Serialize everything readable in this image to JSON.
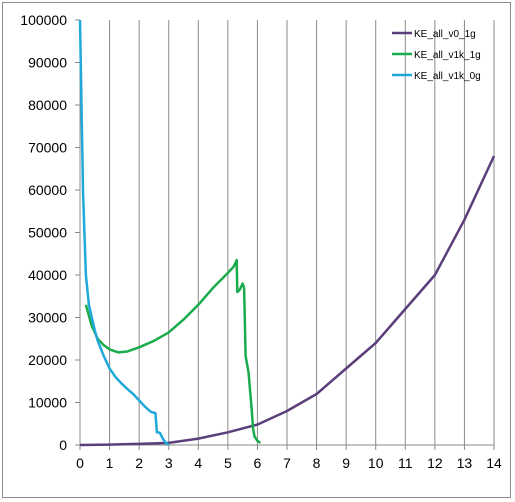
{
  "chart_data": {
    "type": "line",
    "title": "",
    "xlabel": "",
    "ylabel": "",
    "xlim": [
      0,
      14
    ],
    "ylim": [
      0,
      100000
    ],
    "x_ticks": [
      "0",
      "1",
      "2",
      "3",
      "4",
      "5",
      "6",
      "7",
      "8",
      "9",
      "10",
      "11",
      "12",
      "13",
      "14"
    ],
    "y_ticks": [
      "0",
      "10000",
      "20000",
      "30000",
      "40000",
      "50000",
      "60000",
      "70000",
      "80000",
      "90000",
      "100000"
    ],
    "grid": {
      "vertical": true,
      "horizontal": false
    },
    "legend_position": "top-right",
    "series": [
      {
        "name": "KE_all_v0_1g",
        "color": "#5b3f7a",
        "points": [
          [
            0,
            0
          ],
          [
            1,
            100
          ],
          [
            2,
            250
          ],
          [
            3,
            500
          ],
          [
            4,
            1500
          ],
          [
            5,
            3000
          ],
          [
            6,
            4800
          ],
          [
            7,
            8000
          ],
          [
            8,
            12000
          ],
          [
            9,
            18000
          ],
          [
            10,
            24000
          ],
          [
            11,
            32000
          ],
          [
            12,
            40000
          ],
          [
            13,
            53000
          ],
          [
            14,
            68000
          ]
        ]
      },
      {
        "name": "KE_all_v1k_1g",
        "color": "#1aac4c",
        "points": [
          [
            0.2,
            33000
          ],
          [
            0.4,
            28000
          ],
          [
            0.6,
            25000
          ],
          [
            0.8,
            23500
          ],
          [
            1,
            22500
          ],
          [
            1.3,
            21800
          ],
          [
            1.6,
            22000
          ],
          [
            2,
            23000
          ],
          [
            2.5,
            24500
          ],
          [
            3,
            26500
          ],
          [
            3.5,
            29500
          ],
          [
            4,
            33000
          ],
          [
            4.5,
            37000
          ],
          [
            5,
            40500
          ],
          [
            5.2,
            42000
          ],
          [
            5.3,
            43500
          ],
          [
            5.32,
            36000
          ],
          [
            5.4,
            36500
          ],
          [
            5.5,
            38000
          ],
          [
            5.55,
            37000
          ],
          [
            5.6,
            21000
          ],
          [
            5.7,
            17000
          ],
          [
            5.75,
            13000
          ],
          [
            5.8,
            9000
          ],
          [
            5.85,
            4000
          ],
          [
            5.9,
            2000
          ],
          [
            6,
            1000
          ],
          [
            6.1,
            500
          ]
        ]
      },
      {
        "name": "KE_all_v1k_0g",
        "color": "#20a8da",
        "points": [
          [
            0,
            100000
          ],
          [
            0.05,
            80000
          ],
          [
            0.1,
            60000
          ],
          [
            0.15,
            50000
          ],
          [
            0.2,
            40000
          ],
          [
            0.3,
            33000
          ],
          [
            0.4,
            30000
          ],
          [
            0.5,
            27000
          ],
          [
            0.6,
            24500
          ],
          [
            0.8,
            21000
          ],
          [
            1,
            18000
          ],
          [
            1.2,
            16000
          ],
          [
            1.4,
            14500
          ],
          [
            1.6,
            13200
          ],
          [
            1.8,
            12000
          ],
          [
            2,
            10500
          ],
          [
            2.2,
            9000
          ],
          [
            2.4,
            7800
          ],
          [
            2.55,
            7500
          ],
          [
            2.6,
            3000
          ],
          [
            2.7,
            2900
          ],
          [
            2.8,
            1500
          ],
          [
            2.9,
            500
          ],
          [
            3,
            0
          ]
        ]
      }
    ]
  }
}
